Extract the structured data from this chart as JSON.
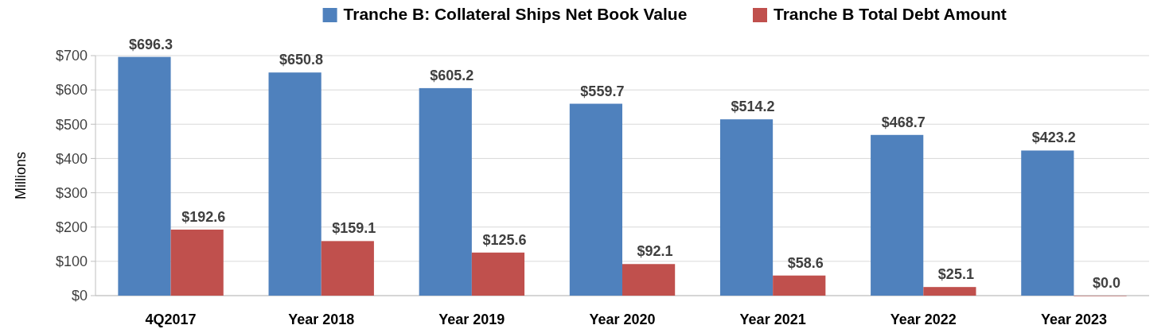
{
  "chart_data": {
    "type": "bar",
    "ylabel": "Millions",
    "categories": [
      "4Q2017",
      "Year 2018",
      "Year 2019",
      "Year 2020",
      "Year 2021",
      "Year 2022",
      "Year 2023"
    ],
    "series": [
      {
        "name": "Tranche B: Collateral Ships Net Book Value",
        "color": "#4f81bd",
        "values": [
          696.3,
          650.8,
          605.2,
          559.7,
          514.2,
          468.7,
          423.2
        ],
        "value_labels": [
          "$696.3",
          "$650.8",
          "$605.2",
          "$559.7",
          "$514.2",
          "$468.7",
          "$423.2"
        ]
      },
      {
        "name": "Tranche B Total Debt Amount",
        "color": "#c0504d",
        "values": [
          192.6,
          159.1,
          125.6,
          92.1,
          58.6,
          25.1,
          0.0
        ],
        "value_labels": [
          "$192.6",
          "$159.1",
          "$125.6",
          "$92.1",
          "$58.6",
          "$25.1",
          "$0.0"
        ]
      }
    ],
    "ylim": [
      0,
      700
    ],
    "yticks": [
      {
        "value": 0,
        "label": "$0"
      },
      {
        "value": 100,
        "label": "$100"
      },
      {
        "value": 200,
        "label": "$200"
      },
      {
        "value": 300,
        "label": "$300"
      },
      {
        "value": 400,
        "label": "$400"
      },
      {
        "value": 500,
        "label": "$500"
      },
      {
        "value": 600,
        "label": "$600"
      },
      {
        "value": 700,
        "label": "$700"
      }
    ],
    "grid": "y",
    "legend": "top"
  }
}
